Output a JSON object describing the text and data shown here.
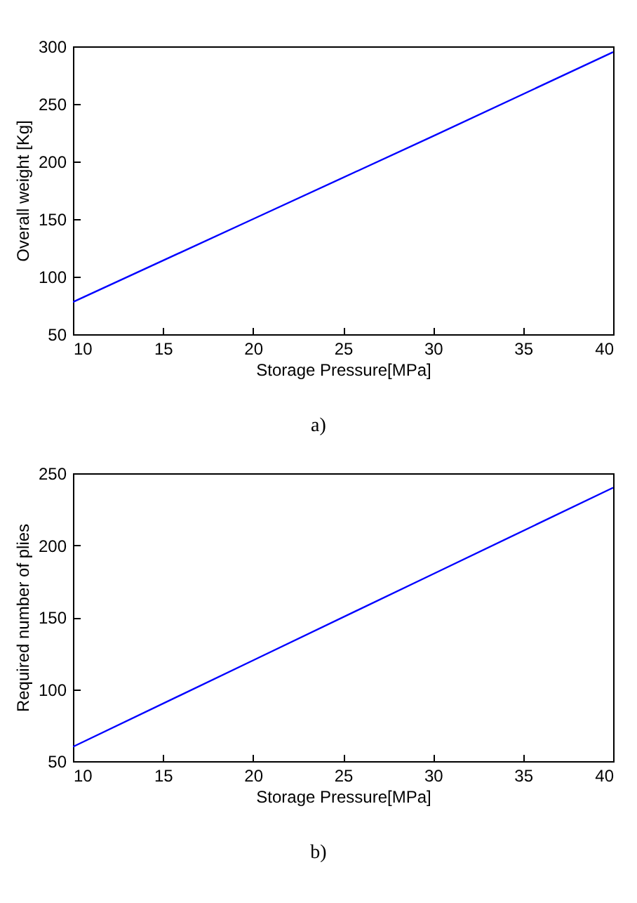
{
  "chart_data": [
    {
      "type": "line",
      "xlabel": "Storage Pressure[MPa]",
      "ylabel": "Overall weight [Kg]",
      "x": [
        10,
        20,
        30,
        40
      ],
      "series": [
        {
          "color": "#0000ff",
          "values": [
            78,
            150,
            222,
            295
          ]
        }
      ],
      "xlim": [
        10,
        40
      ],
      "xticks": [
        10,
        15,
        20,
        25,
        30,
        35,
        40
      ],
      "ylim": [
        50,
        300
      ],
      "yticks": [
        50,
        100,
        150,
        200,
        250,
        300
      ],
      "grid": false,
      "annotations": [
        "a)"
      ]
    },
    {
      "type": "line",
      "xlabel": "Storage Pressure[MPa]",
      "ylabel": "Required number of plies",
      "x": [
        10,
        20,
        30,
        40
      ],
      "series": [
        {
          "color": "#0000ff",
          "values": [
            60,
            120,
            180,
            240
          ]
        }
      ],
      "xlim": [
        10,
        40
      ],
      "xticks": [
        10,
        15,
        20,
        25,
        30,
        35,
        40
      ],
      "ylim": [
        50,
        250
      ],
      "yticks": [
        50,
        100,
        150,
        200,
        250
      ],
      "grid": false,
      "annotations": [
        "b)"
      ]
    }
  ]
}
